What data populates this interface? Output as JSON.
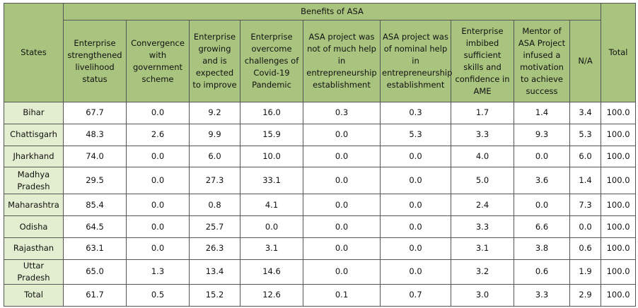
{
  "table": {
    "states_header": "States",
    "group_header": "Benefits of ASA",
    "total_header": "Total",
    "columns": [
      "Enterprise strengthened livelihood status",
      "Convergence with government scheme",
      "Enterprise growing and is expected to improve",
      "Enterprise overcome challenges of Covid-19 Pandemic",
      "ASA project was not of much help in entrepreneurship establishment",
      "ASA project was of nominal help in entrepreneurship establishment",
      "Enterprise imbibed sufficient skills and confidence in AME",
      "Mentor of ASA Project infused a motivation to achieve success",
      "N/A"
    ],
    "rows": [
      {
        "state": "Bihar",
        "values": [
          "67.7",
          "0.0",
          "9.2",
          "16.0",
          "0.3",
          "0.3",
          "1.7",
          "1.4",
          "3.4"
        ],
        "total": "100.0"
      },
      {
        "state": "Chattisgarh",
        "values": [
          "48.3",
          "2.6",
          "9.9",
          "15.9",
          "0.0",
          "5.3",
          "3.3",
          "9.3",
          "5.3"
        ],
        "total": "100.0"
      },
      {
        "state": "Jharkhand",
        "values": [
          "74.0",
          "0.0",
          "6.0",
          "10.0",
          "0.0",
          "0.0",
          "4.0",
          "0.0",
          "6.0"
        ],
        "total": "100.0"
      },
      {
        "state": "Madhya Pradesh",
        "values": [
          "29.5",
          "0.0",
          "27.3",
          "33.1",
          "0.0",
          "0.0",
          "5.0",
          "3.6",
          "1.4"
        ],
        "total": "100.0"
      },
      {
        "state": "Maharashtra",
        "values": [
          "85.4",
          "0.0",
          "0.8",
          "4.1",
          "0.0",
          "0.0",
          "2.4",
          "0.0",
          "7.3"
        ],
        "total": "100.0"
      },
      {
        "state": "Odisha",
        "values": [
          "64.5",
          "0.0",
          "25.7",
          "0.0",
          "0.0",
          "0.0",
          "3.3",
          "6.6",
          "0.0"
        ],
        "total": "100.0"
      },
      {
        "state": "Rajasthan",
        "values": [
          "63.1",
          "0.0",
          "26.3",
          "3.1",
          "0.0",
          "0.0",
          "3.1",
          "3.8",
          "0.6"
        ],
        "total": "100.0"
      },
      {
        "state": "Uttar Pradesh",
        "values": [
          "65.0",
          "1.3",
          "13.4",
          "14.6",
          "0.0",
          "0.0",
          "3.2",
          "0.6",
          "1.9"
        ],
        "total": "100.0"
      },
      {
        "state": "Total",
        "values": [
          "61.7",
          "0.5",
          "15.2",
          "12.6",
          "0.1",
          "0.7",
          "3.0",
          "3.3",
          "2.9"
        ],
        "total": "100.0"
      }
    ]
  }
}
